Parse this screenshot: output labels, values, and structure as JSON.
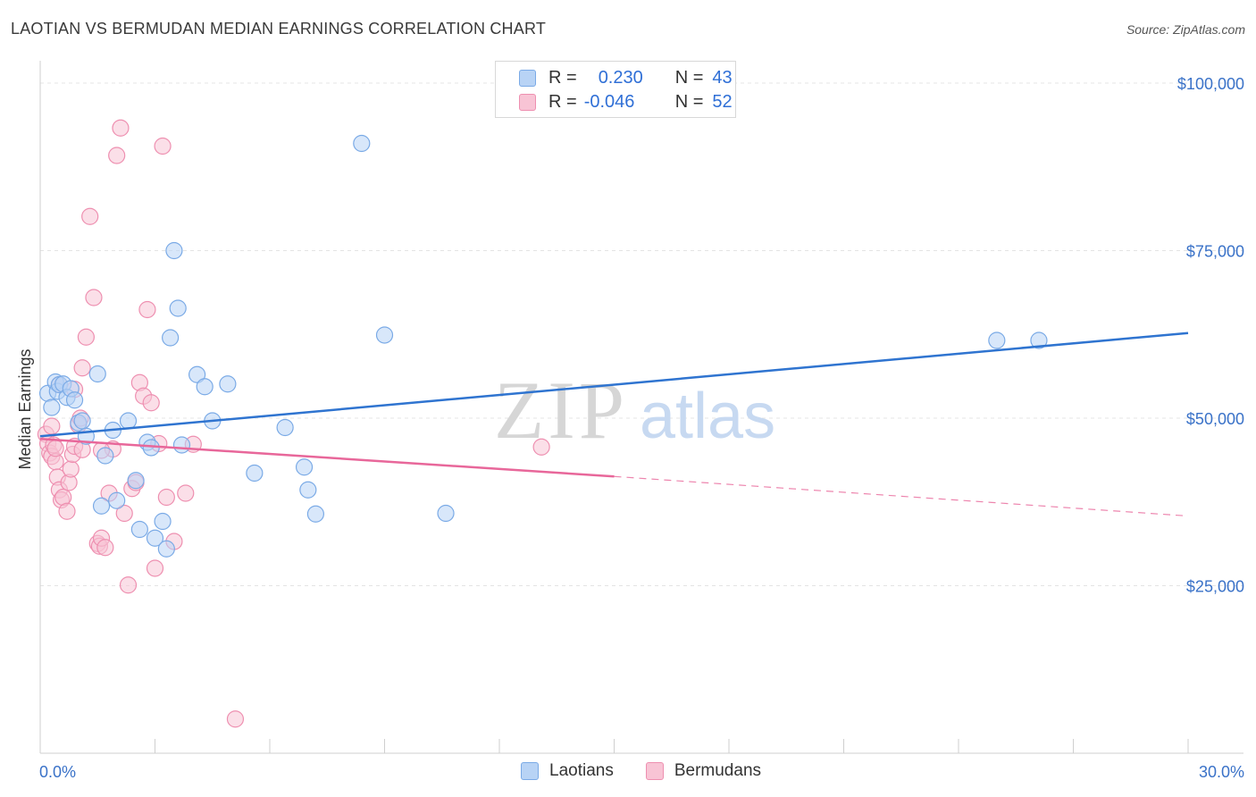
{
  "title": "LAOTIAN VS BERMUDAN MEDIAN EARNINGS CORRELATION CHART",
  "source": "Source: ZipAtlas.com",
  "legend": {
    "rows": [
      {
        "r_label": "R =",
        "r_value": "0.230",
        "n_label": "N =",
        "n_value": "43"
      },
      {
        "r_label": "R =",
        "r_value": "-0.046",
        "n_label": "N =",
        "n_value": "52"
      }
    ]
  },
  "bottom_legend": [
    "Laotians",
    "Bermudans"
  ],
  "colors": {
    "laotian_fill": "#b8d3f5",
    "laotian_stroke": "#7aaae6",
    "laotian_line": "#2f74d0",
    "bermudan_fill": "#f8c4d5",
    "bermudan_stroke": "#ee8fb0",
    "bermudan_line": "#e8679a",
    "tick_text": "#3a72c8",
    "grid": "#e4e4e4"
  },
  "chart_data": {
    "type": "scatter",
    "title": "LAOTIAN VS BERMUDAN MEDIAN EARNINGS CORRELATION CHART",
    "xlabel": "",
    "ylabel": "Median Earnings",
    "xlim": [
      0,
      30
    ],
    "ylim": [
      0,
      102000
    ],
    "x_tick_labels": [
      "0.0%",
      "30.0%"
    ],
    "y_ticks": [
      25000,
      50000,
      75000,
      100000
    ],
    "y_tick_labels": [
      "$25,000",
      "$50,000",
      "$75,000",
      "$100,000"
    ],
    "watermark": {
      "zip": "ZIP",
      "atlas": "atlas"
    },
    "series": [
      {
        "name": "Laotians",
        "r": 0.23,
        "n": 43,
        "points": [
          [
            0.2,
            53700
          ],
          [
            0.3,
            51600
          ],
          [
            0.4,
            55400
          ],
          [
            0.45,
            54000
          ],
          [
            0.5,
            55000
          ],
          [
            0.6,
            55100
          ],
          [
            0.7,
            53100
          ],
          [
            0.8,
            54400
          ],
          [
            0.9,
            52700
          ],
          [
            1.0,
            49300
          ],
          [
            1.1,
            49600
          ],
          [
            1.2,
            47300
          ],
          [
            1.5,
            56600
          ],
          [
            1.6,
            36900
          ],
          [
            1.7,
            44400
          ],
          [
            1.9,
            48200
          ],
          [
            2.0,
            37700
          ],
          [
            2.3,
            49600
          ],
          [
            2.5,
            40700
          ],
          [
            2.6,
            33400
          ],
          [
            2.8,
            46400
          ],
          [
            2.9,
            45600
          ],
          [
            3.0,
            32100
          ],
          [
            3.2,
            34600
          ],
          [
            3.3,
            30500
          ],
          [
            3.4,
            62000
          ],
          [
            3.5,
            75000
          ],
          [
            3.6,
            66400
          ],
          [
            3.7,
            46000
          ],
          [
            4.1,
            56500
          ],
          [
            4.3,
            54700
          ],
          [
            4.5,
            49600
          ],
          [
            4.9,
            55100
          ],
          [
            5.6,
            41800
          ],
          [
            7.0,
            39300
          ],
          [
            7.2,
            35700
          ],
          [
            6.4,
            48600
          ],
          [
            6.9,
            42700
          ],
          [
            8.4,
            91000
          ],
          [
            9.0,
            62400
          ],
          [
            10.6,
            35800
          ],
          [
            25.0,
            61600
          ],
          [
            26.1,
            61600
          ]
        ],
        "trend": {
          "x0": 0.0,
          "y0": 47300,
          "x1": 30.0,
          "y1": 62700
        }
      },
      {
        "name": "Bermudans",
        "r": -0.046,
        "n": 52,
        "points": [
          [
            0.15,
            47600
          ],
          [
            0.2,
            46200
          ],
          [
            0.25,
            44800
          ],
          [
            0.3,
            44300
          ],
          [
            0.35,
            46000
          ],
          [
            0.4,
            43500
          ],
          [
            0.45,
            41200
          ],
          [
            0.5,
            39300
          ],
          [
            0.55,
            37800
          ],
          [
            0.6,
            38200
          ],
          [
            0.7,
            36100
          ],
          [
            0.75,
            40400
          ],
          [
            0.8,
            42400
          ],
          [
            0.85,
            44600
          ],
          [
            0.9,
            45800
          ],
          [
            1.0,
            49000
          ],
          [
            1.05,
            50000
          ],
          [
            1.1,
            57500
          ],
          [
            1.2,
            62100
          ],
          [
            1.3,
            80100
          ],
          [
            1.4,
            68000
          ],
          [
            1.5,
            31300
          ],
          [
            1.55,
            30900
          ],
          [
            1.6,
            32100
          ],
          [
            1.7,
            30700
          ],
          [
            1.8,
            38800
          ],
          [
            1.9,
            45400
          ],
          [
            2.0,
            89200
          ],
          [
            2.1,
            93300
          ],
          [
            2.2,
            35800
          ],
          [
            2.3,
            25100
          ],
          [
            2.4,
            39500
          ],
          [
            2.5,
            40400
          ],
          [
            2.6,
            55300
          ],
          [
            2.7,
            53300
          ],
          [
            2.8,
            66200
          ],
          [
            2.9,
            52300
          ],
          [
            3.0,
            27600
          ],
          [
            3.1,
            46200
          ],
          [
            3.2,
            90600
          ],
          [
            3.3,
            38200
          ],
          [
            3.5,
            31600
          ],
          [
            4.0,
            46100
          ],
          [
            5.1,
            5100
          ],
          [
            3.8,
            38800
          ],
          [
            1.6,
            45200
          ],
          [
            0.5,
            55000
          ],
          [
            0.9,
            54300
          ],
          [
            1.1,
            45300
          ],
          [
            13.1,
            45700
          ],
          [
            0.3,
            48800
          ],
          [
            0.4,
            45500
          ]
        ],
        "trend": {
          "x0": 0.0,
          "y0": 46900,
          "x1": 15.0,
          "y1": 41300
        },
        "trend_dashed": {
          "x0": 15.0,
          "y0": 41300,
          "x1": 30.0,
          "y1": 35400
        }
      }
    ]
  }
}
